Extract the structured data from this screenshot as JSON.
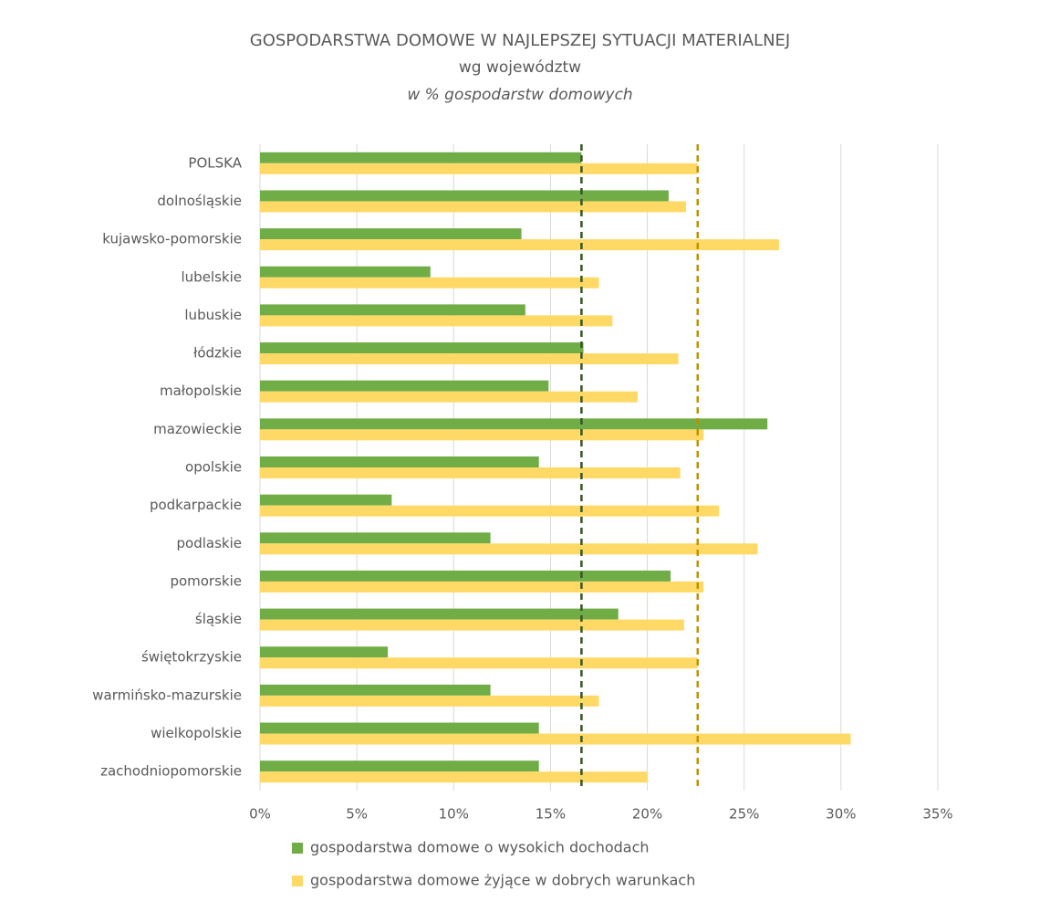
{
  "chart_data": {
    "type": "barh",
    "title": "GOSPODARSTWA DOMOWE W NAJLEPSZEJ SYTUACJI MATERIALNEJ",
    "subtitle": "wg województw",
    "unit_note": "w % gospodarstw domowych",
    "categories": [
      "POLSKA",
      "dolnośląskie",
      "kujawsko-pomorskie",
      "lubelskie",
      "lubuskie",
      "łódzkie",
      "małopolskie",
      "mazowieckie",
      "opolskie",
      "podkarpackie",
      "podlaskie",
      "pomorskie",
      "śląskie",
      "świętokrzyskie",
      "warmińsko-mazurskie",
      "wielkopolskie",
      "zachodniopomorskie"
    ],
    "series": [
      {
        "name": "gospodarstwa domowe o wysokich dochodach",
        "color": "#70ad47",
        "reference_color": "#375623",
        "values": [
          16.6,
          21.1,
          13.5,
          8.8,
          13.7,
          16.7,
          14.9,
          26.2,
          14.4,
          6.8,
          11.9,
          21.2,
          18.5,
          6.6,
          11.9,
          14.4,
          14.4
        ]
      },
      {
        "name": "gospodarstwa domowe żyjące w dobrych warunkach",
        "color": "#ffd966",
        "reference_color": "#bf9000",
        "values": [
          22.6,
          22.0,
          26.8,
          17.5,
          18.2,
          21.6,
          19.5,
          22.9,
          21.7,
          23.7,
          25.7,
          22.9,
          21.9,
          22.6,
          17.5,
          30.5,
          20.0
        ]
      }
    ],
    "xlim": [
      0,
      35
    ],
    "xticks": [
      {
        "value": 0,
        "label": "0%"
      },
      {
        "value": 5,
        "label": "5%"
      },
      {
        "value": 10,
        "label": "10%"
      },
      {
        "value": 15,
        "label": "15%"
      },
      {
        "value": 20,
        "label": "20%"
      },
      {
        "value": 25,
        "label": "25%"
      },
      {
        "value": 30,
        "label": "30%"
      },
      {
        "value": 35,
        "label": "35%"
      }
    ],
    "grid": true
  }
}
